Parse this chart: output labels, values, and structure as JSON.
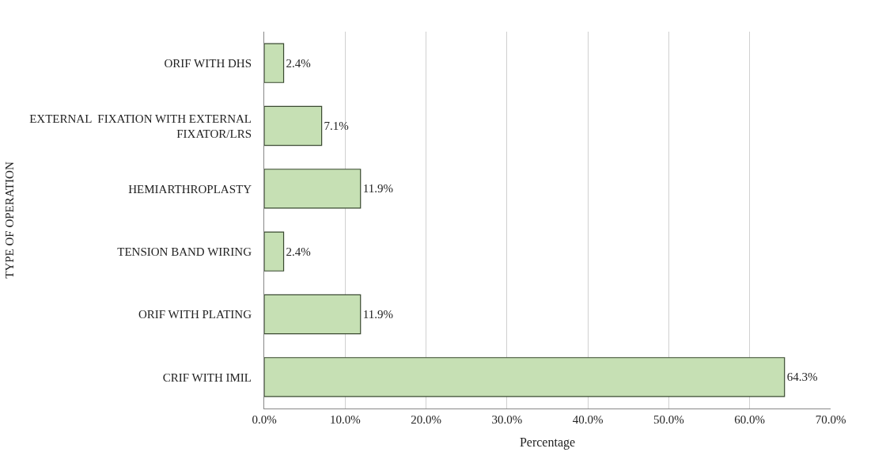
{
  "chart_data": {
    "type": "bar",
    "orientation": "horizontal",
    "categories": [
      "ORIF WITH DHS",
      "EXTERNAL  FIXATION WITH EXTERNAL FIXATOR/LRS",
      "HEMIARTHROPLASTY",
      "TENSION BAND WIRING",
      "ORIF WITH PLATING",
      "CRIF WITH IMIL"
    ],
    "values": [
      2.4,
      7.1,
      11.9,
      2.4,
      11.9,
      64.3
    ],
    "value_labels": [
      "2.4%",
      "7.1%",
      "11.9%",
      "2.4%",
      "11.9%",
      "64.3%"
    ],
    "color": "#c6e0b4",
    "xlabel": "Percentage",
    "ylabel": "TYPE OF OPERATION",
    "xlim": [
      0,
      70
    ],
    "xticks": [
      {
        "value": 0,
        "label": "0.0%"
      },
      {
        "value": 10,
        "label": "10.0%"
      },
      {
        "value": 20,
        "label": "20.0%"
      },
      {
        "value": 30,
        "label": "30.0%"
      },
      {
        "value": 40,
        "label": "40.0%"
      },
      {
        "value": 50,
        "label": "50.0%"
      },
      {
        "value": 60,
        "label": "60.0%"
      },
      {
        "value": 70,
        "label": "70.0%"
      }
    ],
    "grid": "x"
  }
}
